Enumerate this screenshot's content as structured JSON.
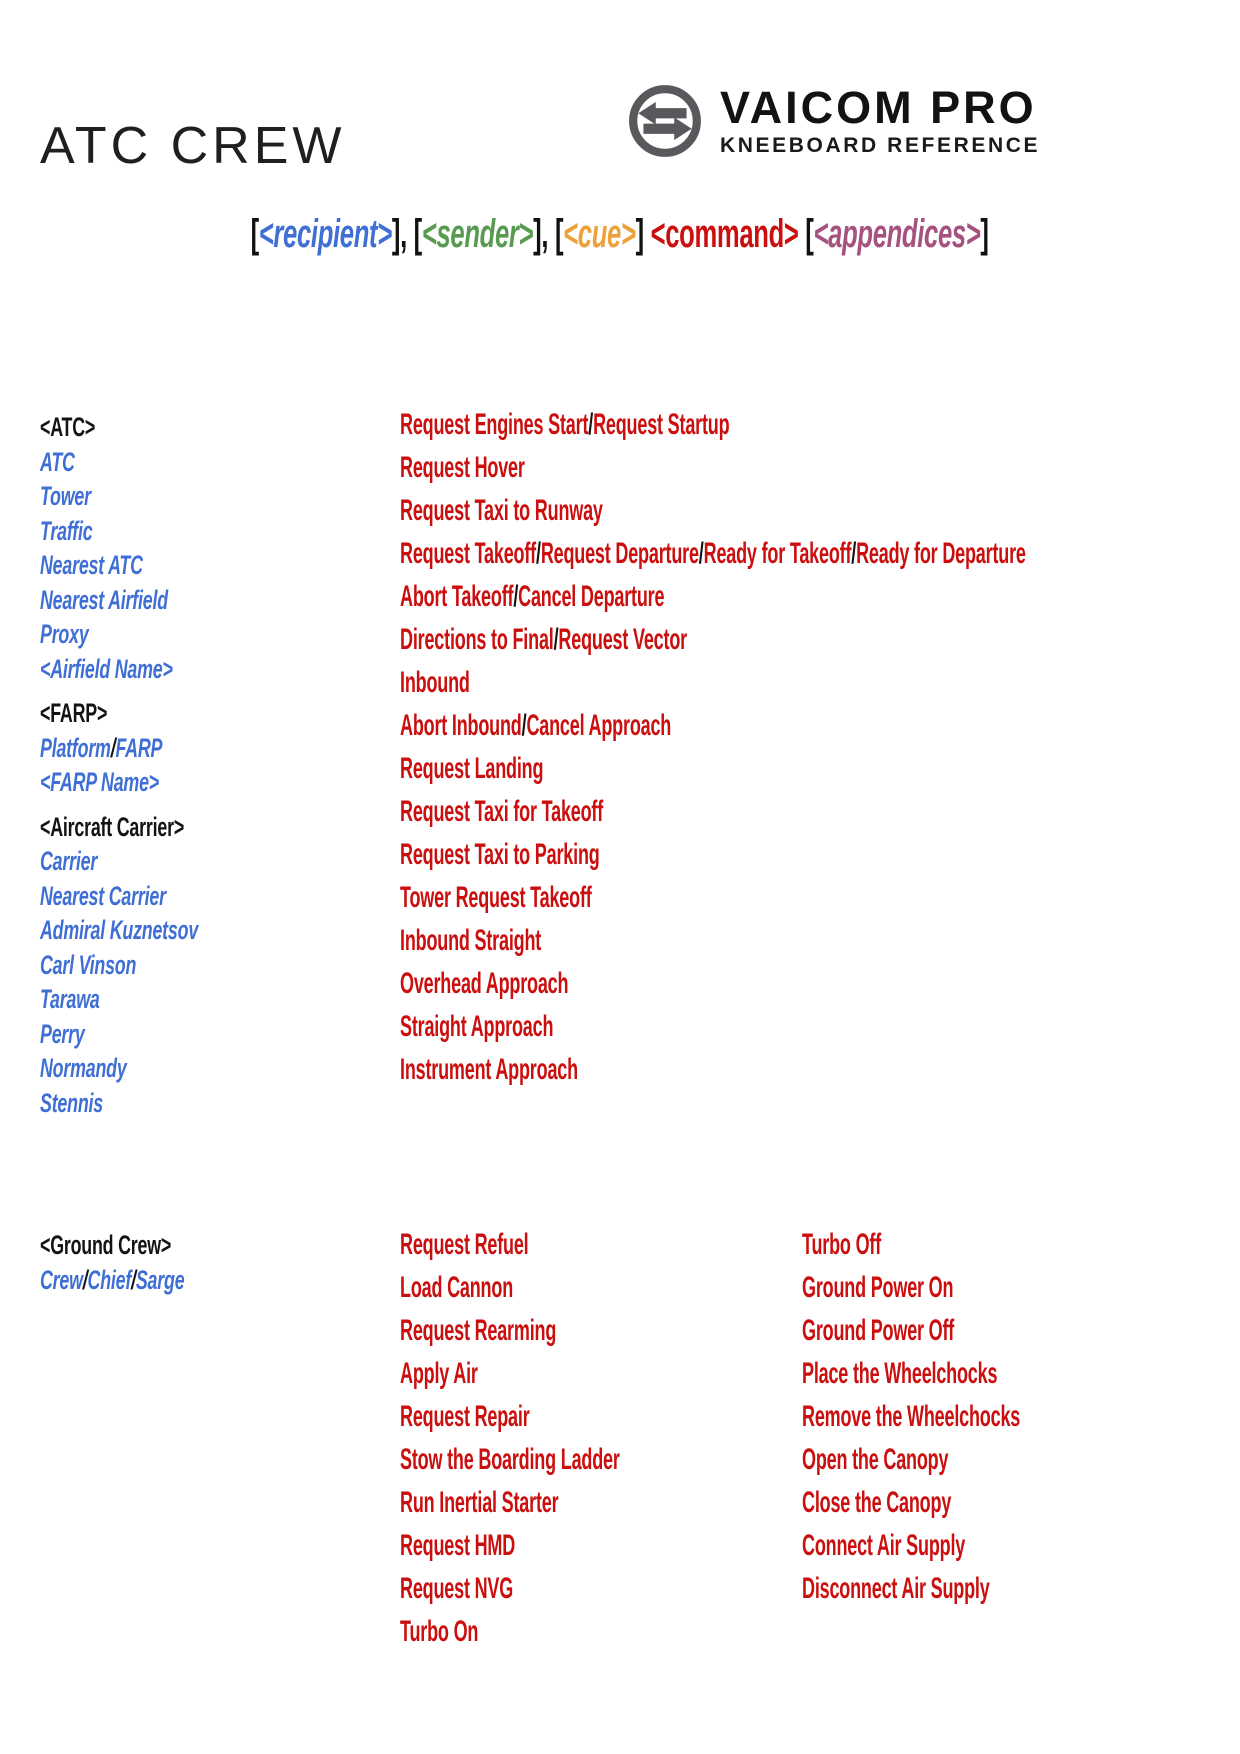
{
  "header": {
    "title": "ATC CREW",
    "brand": "VAICOM PRO",
    "brand_sub": "KNEEBOARD REFERENCE",
    "logo_icon": "transfer-arrows-icon"
  },
  "colors": {
    "recipient": "#3f6fd4",
    "sender": "#579a50",
    "cue": "#eda13b",
    "command": "#cb0f0f",
    "appendices": "#a5527f",
    "ink": "#111111",
    "logo_gray": "#58595c"
  },
  "syntax": {
    "parts": [
      {
        "t": "[",
        "s": "blk"
      },
      {
        "t": "<recipient>",
        "s": "recipient"
      },
      {
        "t": "], [",
        "s": "blk"
      },
      {
        "t": "<sender>",
        "s": "sender"
      },
      {
        "t": "], [",
        "s": "blk"
      },
      {
        "t": "<cue>",
        "s": "cue"
      },
      {
        "t": "] ",
        "s": "blk"
      },
      {
        "t": "<command>",
        "s": "command"
      },
      {
        "t": " [",
        "s": "blk"
      },
      {
        "t": "<appendices>",
        "s": "appendices"
      },
      {
        "t": "]",
        "s": "blk"
      }
    ]
  },
  "sections": [
    {
      "recipient_groups": [
        {
          "header": "<ATC>",
          "items": [
            "ATC",
            "Tower",
            "Traffic",
            "Nearest ATC",
            "Nearest Airfield",
            "Proxy",
            "<Airfield Name>"
          ]
        },
        {
          "header": "<FARP>",
          "items": [
            "Platform/FARP",
            "<FARP Name>"
          ]
        },
        {
          "header": "<Aircraft Carrier>",
          "items": [
            "Carrier",
            "Nearest Carrier",
            "Admiral Kuznetsov",
            "Carl Vinson",
            "Tarawa",
            "Perry",
            "Normandy",
            "Stennis"
          ]
        }
      ],
      "commands_col1": [
        "Request Engines Start/Request Startup",
        "Request Hover",
        "Request Taxi to Runway",
        "Request Takeoff/Request Departure/Ready for Takeoff/Ready for Departure",
        "Abort Takeoff/Cancel Departure",
        "Directions to Final/Request Vector",
        "Inbound",
        "Abort Inbound/Cancel Approach",
        "Request Landing",
        "Request Taxi for Takeoff",
        "Request Taxi to Parking",
        "Tower Request Takeoff",
        "Inbound Straight",
        "Overhead Approach",
        "Straight Approach",
        "Instrument Approach"
      ],
      "commands_col2": []
    },
    {
      "recipient_groups": [
        {
          "header": "<Ground Crew>",
          "items": [
            "Crew/Chief/Sarge"
          ]
        }
      ],
      "commands_col1": [
        "Request Refuel",
        "Load Cannon",
        "Request Rearming",
        "Apply Air",
        "Request Repair",
        "Stow the Boarding Ladder",
        "Run Inertial Starter",
        "Request HMD",
        "Request NVG",
        "Turbo On"
      ],
      "commands_col2": [
        "Turbo Off",
        "Ground Power On",
        "Ground Power Off",
        "Place the Wheelchocks",
        "Remove the Wheelchocks",
        "Open the Canopy",
        "Close the Canopy",
        "Connect Air Supply",
        "Disconnect Air Supply"
      ]
    }
  ]
}
